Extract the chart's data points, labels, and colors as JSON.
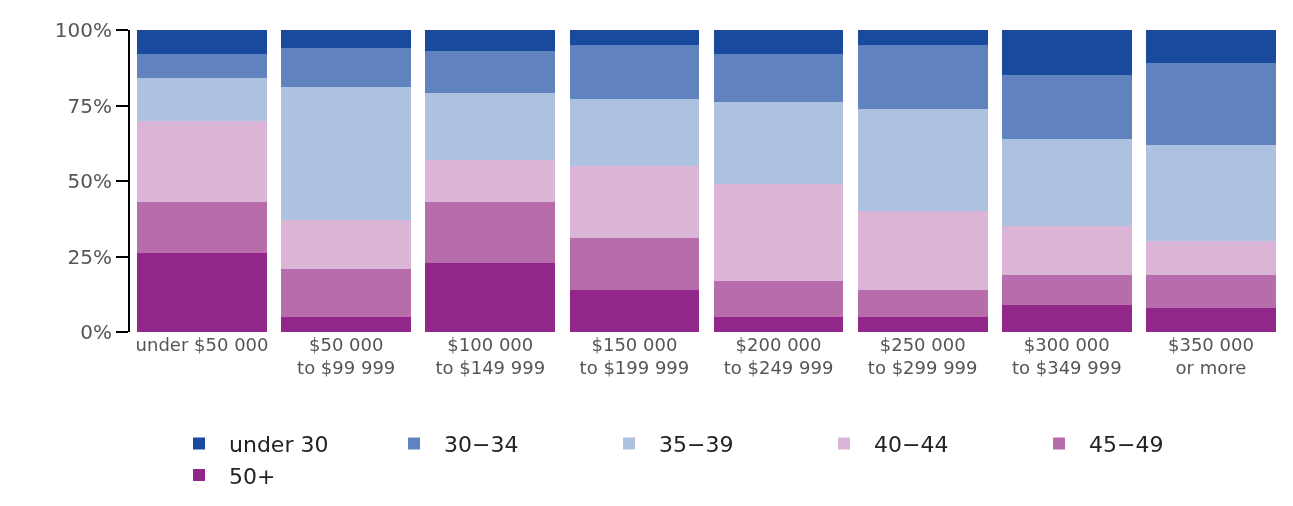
{
  "chart_data": {
    "type": "bar",
    "stacked": true,
    "categories": [
      "under $50 000",
      "$50 000\nto $99 999",
      "$100 000\nto $149 999",
      "$150 000\nto $199 999",
      "$200 000\nto $249 999",
      "$250 000\nto $299 999",
      "$300 000\nto $349 999",
      "$350 000\nor more"
    ],
    "series": [
      {
        "name": "50+",
        "color": "#912788",
        "values": [
          26,
          5,
          23,
          14,
          5,
          5,
          9,
          8
        ]
      },
      {
        "name": "45−49",
        "color": "#b76cab",
        "values": [
          17,
          16,
          20,
          17,
          12,
          9,
          10,
          11
        ]
      },
      {
        "name": "40−44",
        "color": "#dbb5d5",
        "values": [
          27,
          16,
          14,
          24,
          32,
          26,
          16,
          11
        ]
      },
      {
        "name": "35−39",
        "color": "#adc2e1",
        "values": [
          14,
          44,
          22,
          22,
          27,
          34,
          29,
          32
        ]
      },
      {
        "name": "30−34",
        "color": "#6082bf",
        "values": [
          8,
          13,
          14,
          18,
          16,
          21,
          21,
          27
        ]
      },
      {
        "name": "under 30",
        "color": "#1a4a9e",
        "values": [
          8,
          6,
          7,
          5,
          8,
          5,
          15,
          11
        ]
      }
    ],
    "ylim": [
      0,
      100
    ],
    "yticks": [
      {
        "value": 0,
        "label": "0%"
      },
      {
        "value": 25,
        "label": "25%"
      },
      {
        "value": 50,
        "label": "50%"
      },
      {
        "value": 75,
        "label": "75%"
      },
      {
        "value": 100,
        "label": "100%"
      }
    ],
    "legend": "bottom"
  }
}
